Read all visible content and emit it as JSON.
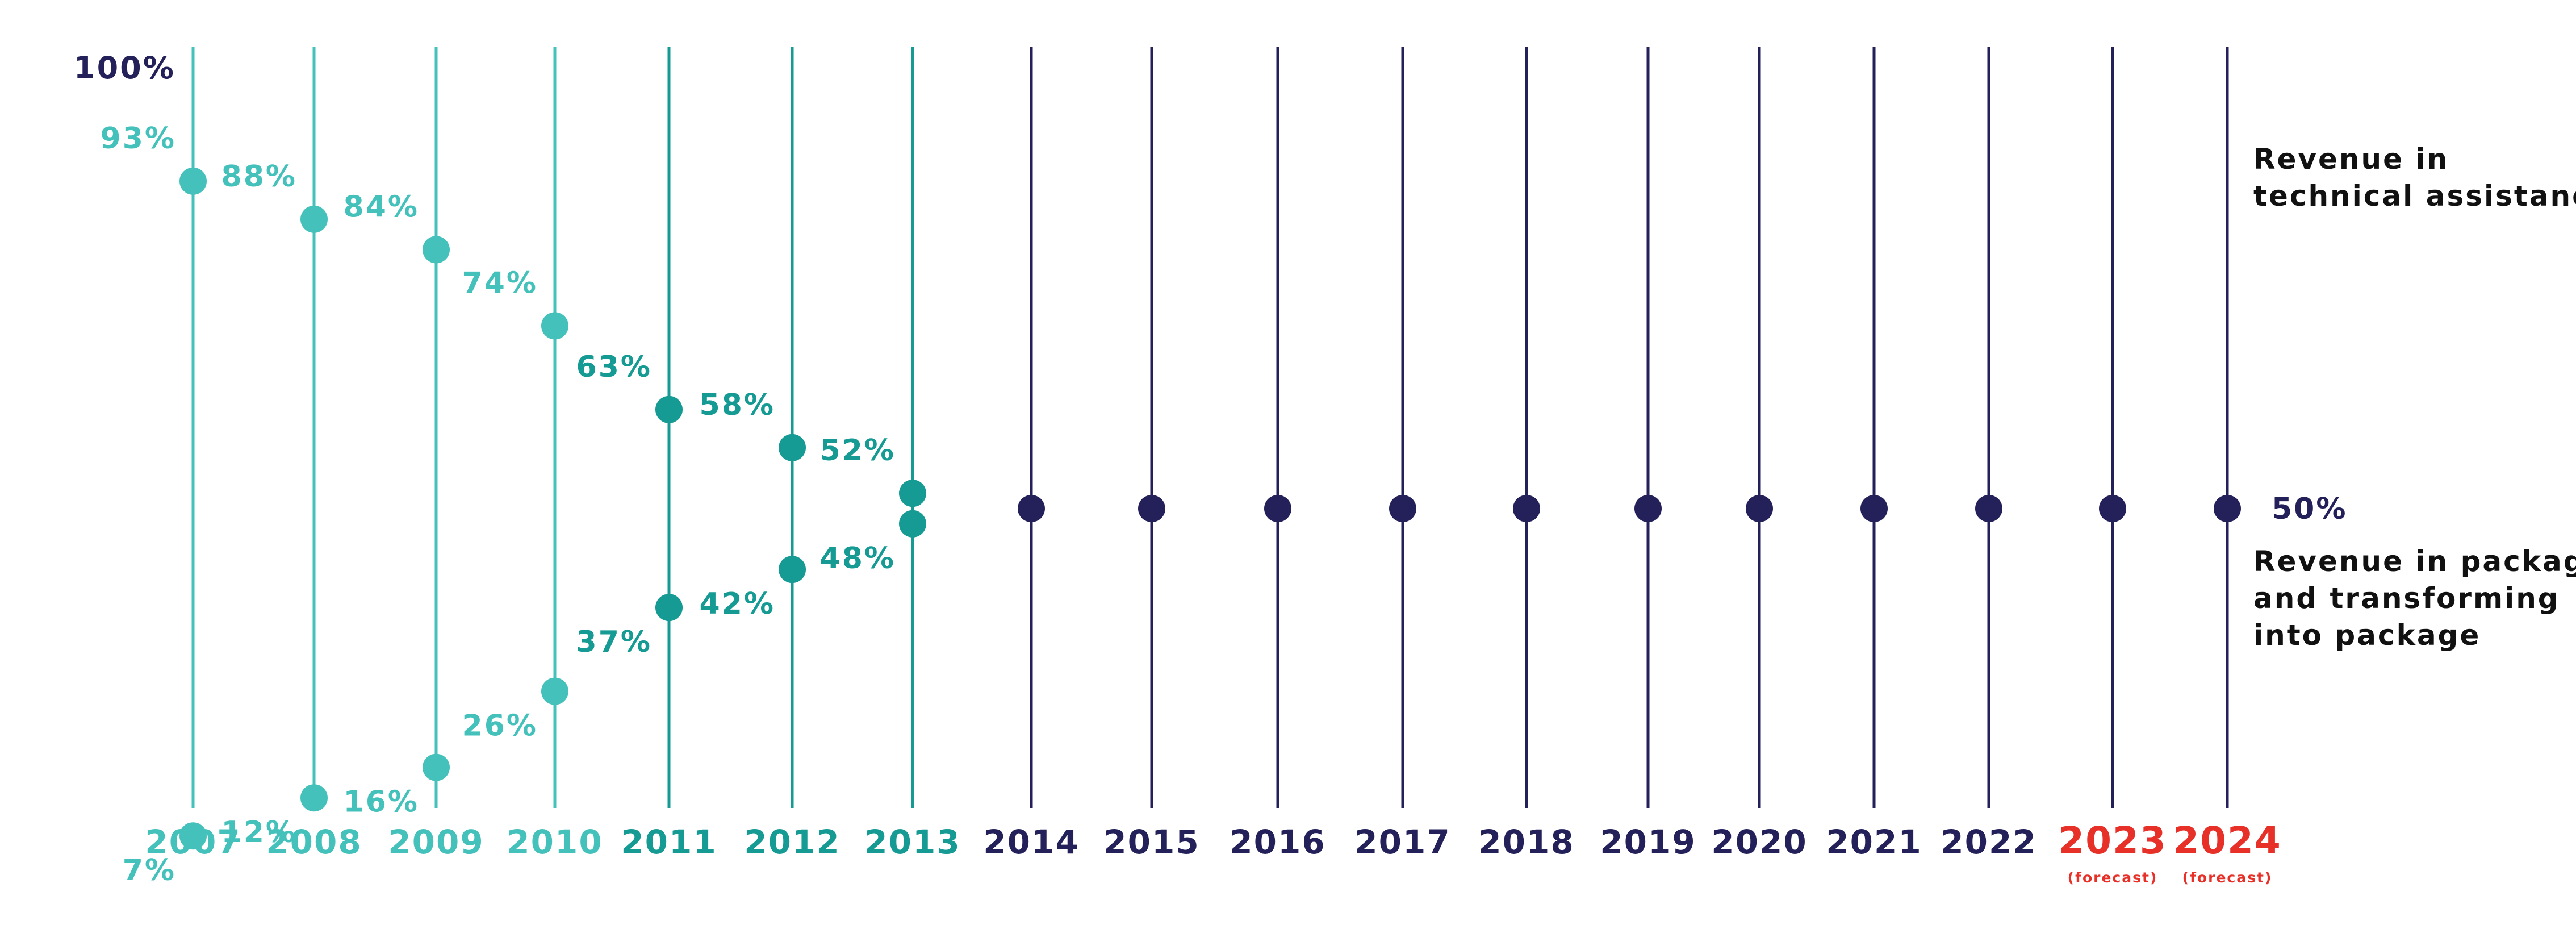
{
  "colors": {
    "teal_light": "#45c1bc",
    "teal_dark": "#159a94",
    "navy": "#23205a",
    "forecast_red": "#e63028",
    "text_dark": "#111111"
  },
  "chart_data": {
    "type": "scatter",
    "title": "",
    "y_axis": {
      "top_label": "100%",
      "range": [
        0,
        100
      ]
    },
    "x": [
      "2007",
      "2008",
      "2009",
      "2010",
      "2011",
      "2012",
      "2013",
      "2014",
      "2015",
      "2016",
      "2017",
      "2018",
      "2019",
      "2020",
      "2021",
      "2022",
      "2023",
      "2024"
    ],
    "forecast_note": "(forecast)",
    "forecast_years": [
      "2023",
      "2024"
    ],
    "series": [
      {
        "name": "Revenue in technical assistance",
        "values": [
          93,
          88,
          84,
          74,
          63,
          58,
          52,
          50,
          50,
          50,
          50,
          50,
          50,
          50,
          50,
          50,
          50,
          50
        ],
        "labels": [
          "93%",
          "88%",
          "84%",
          "74%",
          "63%",
          "58%",
          "52%",
          null,
          null,
          null,
          null,
          null,
          null,
          null,
          null,
          null,
          null,
          null
        ]
      },
      {
        "name": "Revenue in package and transforming into package",
        "values": [
          7,
          12,
          16,
          26,
          37,
          42,
          48,
          50,
          50,
          50,
          50,
          50,
          50,
          50,
          50,
          50,
          50,
          50
        ],
        "labels": [
          "7%",
          "12%",
          "16%",
          "26%",
          "37%",
          "42%",
          "48%",
          null,
          null,
          null,
          null,
          null,
          null,
          null,
          null,
          null,
          null,
          null
        ]
      }
    ],
    "annotations": {
      "merged_value_label": "50%"
    },
    "legend": {
      "top": [
        "Revenue in",
        "technical assistance"
      ],
      "bottom": [
        "Revenue in package",
        "and transforming",
        "into package"
      ]
    },
    "grid": false
  }
}
